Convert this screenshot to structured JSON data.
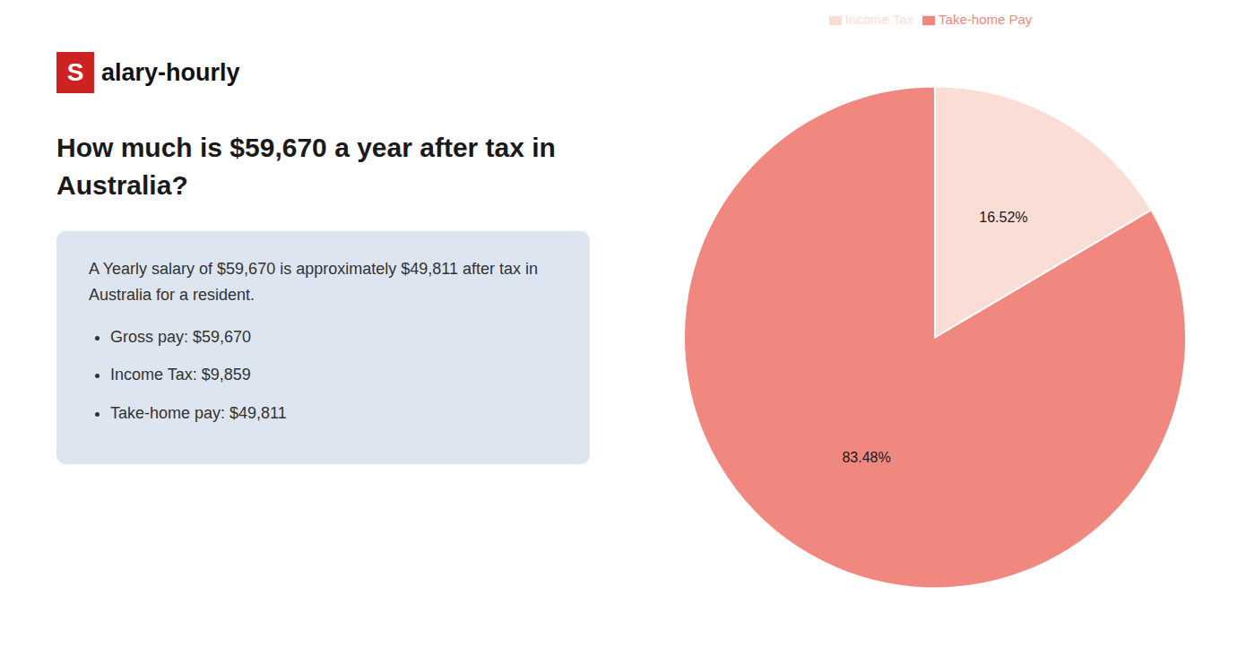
{
  "chart_data": {
    "type": "pie",
    "title": "How much is $59,670 a year after tax in\nAustralia?",
    "categories": [
      "Income Tax",
      "Take-home Pay"
    ],
    "values": [
      16.52,
      83.48
    ],
    "value_labels": [
      "16.52%",
      "83.48%"
    ],
    "colors": [
      "#faddd5",
      "#f08880"
    ],
    "data_labels": true,
    "legend": "top",
    "annotations": [
      "S",
      "alary-hourly",
      "A Yearly salary of $59,670 is approximately $49,811 after tax in Australia for a resident.",
      "Gross pay: $59,670",
      "Income Tax: $9,859",
      "Take-home pay: $49,811"
    ]
  }
}
